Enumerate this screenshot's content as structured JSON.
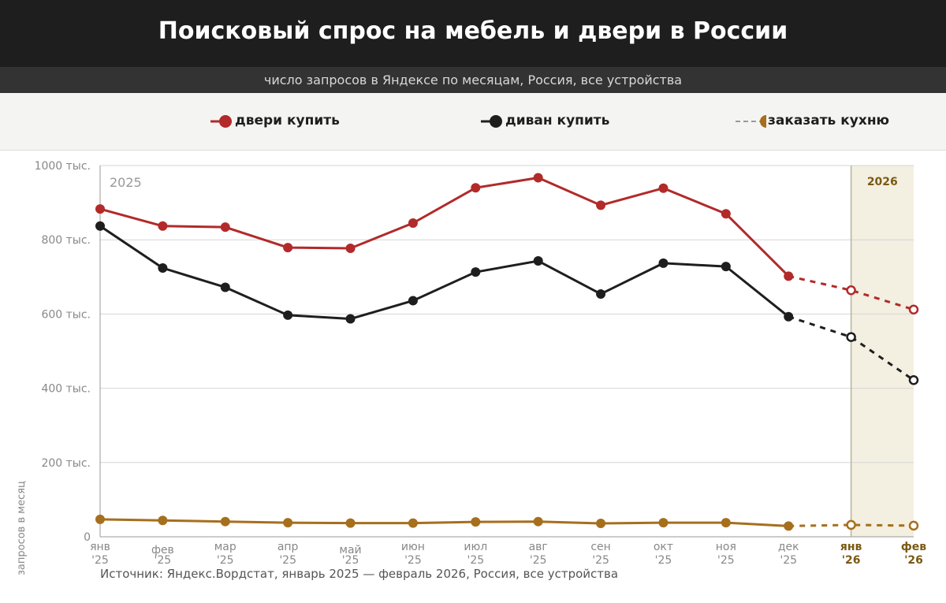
{
  "header": {
    "title": "Поисковый спрос на мебель и двери в России",
    "subtitle": "число запросов в Яндексе по месяцам, Россия, все устройства"
  },
  "legend": [
    {
      "label": "двери купить",
      "color": "#b22a2a"
    },
    {
      "label": "диван купить",
      "color": "#1e1e1e"
    },
    {
      "label": "заказать кухню",
      "color": "#a66f1d"
    }
  ],
  "footer": {
    "source": "Источник: Яндекс.Вордстат, январь 2025 — февраль 2026, Россия, все устройства",
    "y_axis_title": "запросов в месяц"
  },
  "chart_data": {
    "type": "line",
    "title": "Поисковый спрос на мебель и двери в России",
    "subtitle": "число запросов в Яндексе по месяцам, Россия, все устройства",
    "ylabel": "запросов в месяц",
    "ylim": [
      0,
      1000
    ],
    "y_ticks": [
      0,
      200,
      400,
      600,
      800,
      1000
    ],
    "y_tick_labels": [
      "0",
      "200 тыс.",
      "400 тыс.",
      "600 тыс.",
      "800 тыс.",
      "1000 тыс."
    ],
    "grid": true,
    "categories": [
      [
        "янв",
        "'25"
      ],
      [
        "фев",
        "'25"
      ],
      [
        "мар",
        "'25"
      ],
      [
        "апр",
        "'25"
      ],
      [
        "май",
        "'25"
      ],
      [
        "июн",
        "'25"
      ],
      [
        "июл",
        "'25"
      ],
      [
        "авг",
        "'25"
      ],
      [
        "сен",
        "'25"
      ],
      [
        "окт",
        "'25"
      ],
      [
        "ноя",
        "'25"
      ],
      [
        "дек",
        "'25"
      ],
      [
        "янв",
        "'26"
      ],
      [
        "фев",
        "'26"
      ]
    ],
    "year_labels": {
      "2025": "2025",
      "2026": "2026"
    },
    "highlight_start_index": 12,
    "dashed_from_index": 11,
    "series": [
      {
        "name": "двери купить",
        "color": "#b22a2a",
        "values": [
          883,
          837,
          834,
          779,
          777,
          845,
          940,
          967,
          893,
          939,
          870,
          702,
          664,
          612
        ]
      },
      {
        "name": "диван купить",
        "color": "#1e1e1e",
        "values": [
          837,
          724,
          672,
          597,
          587,
          636,
          713,
          743,
          654,
          737,
          728,
          593,
          538,
          422
        ]
      },
      {
        "name": "заказать кухню",
        "color": "#a66f1d",
        "values": [
          47,
          44,
          41,
          38,
          37,
          37,
          40,
          41,
          36,
          38,
          38,
          29,
          32,
          30
        ]
      }
    ]
  }
}
